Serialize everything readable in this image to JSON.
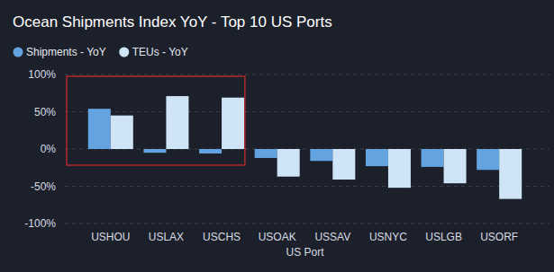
{
  "chart_data": {
    "type": "bar",
    "title": "Ocean Shipments Index YoY - Top 10 US Ports",
    "x_label": "US Port",
    "categories": [
      "USHOU",
      "USLAX",
      "USCHS",
      "USOAK",
      "USSAV",
      "USNYC",
      "USLGB",
      "USORF"
    ],
    "series": [
      {
        "name": "Shipments - YoY",
        "color": "#62a3e0",
        "values": [
          54,
          -5,
          -6,
          -12,
          -16,
          -23,
          -24,
          -28
        ]
      },
      {
        "name": "TEUs - YoY",
        "color": "#cfe4f6",
        "values": [
          45,
          71,
          69,
          -37,
          -41,
          -52,
          -46,
          -67
        ]
      }
    ],
    "ylim": [
      -100,
      100
    ],
    "yticks": [
      {
        "value": -100,
        "label": "-100%"
      },
      {
        "value": -50,
        "label": "-50%"
      },
      {
        "value": 0,
        "label": "0%"
      },
      {
        "value": 50,
        "label": "50%"
      },
      {
        "value": 100,
        "label": "100%"
      }
    ],
    "grid": true,
    "legend": "top-left"
  }
}
